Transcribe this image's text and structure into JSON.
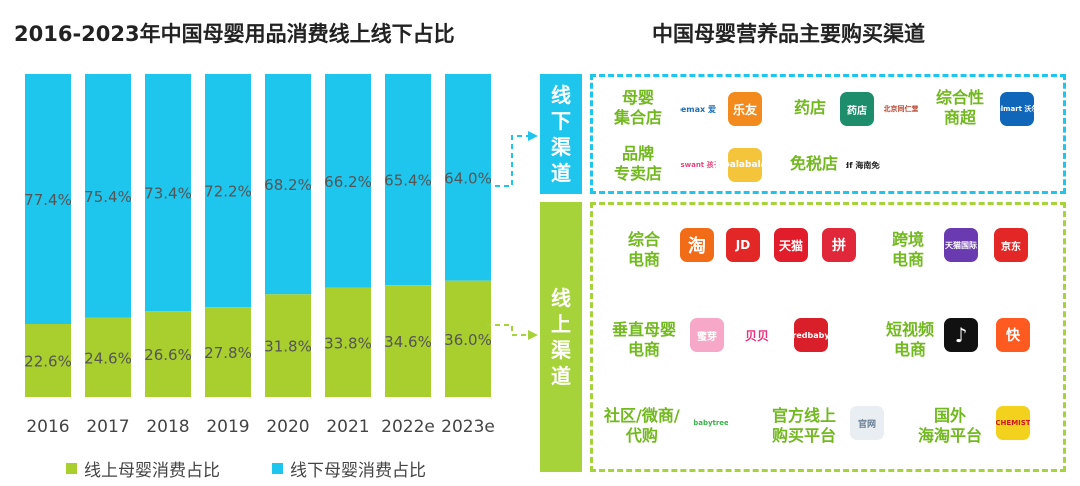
{
  "left_title": "2016-2023年中国母婴用品消费线上线下占比",
  "right_title": "中国母婴营养品主要购买渠道",
  "colors": {
    "online": "#a8cf2e",
    "offline": "#1ec6ee",
    "cat_text": "#72b81f",
    "box_green": "#a6d23a",
    "box_blue": "#1ec6ee"
  },
  "chart_data": {
    "type": "bar",
    "stacked": true,
    "percent": true,
    "title": "2016-2023年中国母婴用品消费线上线下占比",
    "categories": [
      "2016",
      "2017",
      "2018",
      "2019",
      "2020",
      "2021",
      "2022e",
      "2023e"
    ],
    "series": [
      {
        "name": "线上母婴消费占比",
        "values": [
          22.6,
          24.6,
          26.6,
          27.8,
          31.8,
          33.8,
          34.6,
          36.0
        ],
        "labels": [
          "22.6%",
          "24.6%",
          "26.6%",
          "27.8%",
          "31.8%",
          "33.8%",
          "34.6%",
          "36.0%"
        ]
      },
      {
        "name": "线下母婴消费占比",
        "values": [
          77.4,
          75.4,
          73.4,
          72.2,
          68.2,
          66.2,
          65.4,
          64.0
        ],
        "labels": [
          "77.4%",
          "75.4%",
          "73.4%",
          "72.2%",
          "68.2%",
          "66.2%",
          "65.4%",
          "64.0%"
        ]
      }
    ],
    "ylim": [
      0,
      100
    ],
    "legend": "bottom"
  },
  "legend": {
    "online": "线上母婴消费占比",
    "offline": "线下母婴消费占比"
  },
  "offline_label": "线下渠道",
  "online_label": "线上渠道",
  "offline_channels": {
    "maternal_store": {
      "label": "母婴\n集合店",
      "logos": [
        {
          "name": "babemax-logo",
          "text": "babemax 爱婴室"
        },
        {
          "name": "leyou-logo",
          "text": "乐友"
        }
      ]
    },
    "pharmacy": {
      "label": "药店",
      "logos": [
        {
          "name": "pharmacy-logo-1",
          "text": "药店"
        },
        {
          "name": "tongrentang-logo",
          "text": "北京同仁堂"
        }
      ]
    },
    "hypermarket": {
      "label": "综合性\n商超",
      "logos": [
        {
          "name": "walmart-logo",
          "text": "Walmart 沃尔玛"
        }
      ]
    },
    "brand_store": {
      "label": "品牌\n专卖店",
      "logos": [
        {
          "name": "kidswant-logo",
          "text": "kidswant 孩子王"
        },
        {
          "name": "balabala-logo",
          "text": "balabala"
        }
      ]
    },
    "dutyfree": {
      "label": "免税店",
      "logos": [
        {
          "name": "cdf-logo",
          "text": "cdf 海南免税"
        }
      ]
    }
  },
  "online_channels": {
    "general_ecommerce": {
      "label": "综合\n电商",
      "logos": [
        {
          "name": "taobao-logo",
          "text": "淘"
        },
        {
          "name": "jd-logo",
          "text": "JD"
        },
        {
          "name": "tmall-logo",
          "text": "天猫"
        },
        {
          "name": "pinduoduo-logo",
          "text": "拼"
        }
      ]
    },
    "crossborder": {
      "label": "跨境\n电商",
      "logos": [
        {
          "name": "tmall-global-logo",
          "text": "天猫国际"
        },
        {
          "name": "jd-global-logo",
          "text": "京东"
        }
      ]
    },
    "vertical": {
      "label": "垂直母婴\n电商",
      "logos": [
        {
          "name": "miya-logo",
          "text": "蜜芽"
        },
        {
          "name": "beibei-logo",
          "text": "贝贝"
        },
        {
          "name": "redbaby-logo",
          "text": "redbaby"
        }
      ]
    },
    "short_video": {
      "label": "短视频\n电商",
      "logos": [
        {
          "name": "douyin-logo",
          "text": "♪"
        },
        {
          "name": "kuaishou-logo",
          "text": "快"
        }
      ]
    },
    "community": {
      "label": "社区/微商/\n代购",
      "logos": [
        {
          "name": "babytree-logo",
          "text": "babytree"
        }
      ]
    },
    "official": {
      "label": "官方线上\n购买平台",
      "logos": [
        {
          "name": "official-site-logo",
          "text": "官网"
        }
      ]
    },
    "overseas": {
      "label": "国外\n海淘平台",
      "logos": [
        {
          "name": "chemist-logo",
          "text": "CHEMIST"
        }
      ]
    }
  }
}
